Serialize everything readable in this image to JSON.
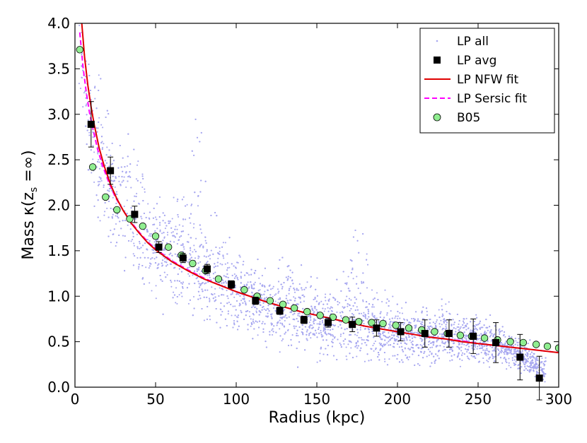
{
  "chart_data": {
    "type": "scatter",
    "xlabel": "Radius (kpc)",
    "ylabel": "Mass κ(z",
    "ylabel_sub": "s",
    "ylabel_tail": " =∞)",
    "xlim": [
      0,
      300
    ],
    "ylim": [
      0.0,
      4.0
    ],
    "xticks": [
      "0",
      "50",
      "100",
      "150",
      "200",
      "250",
      "300"
    ],
    "yticks": [
      "0.0",
      "0.5",
      "1.0",
      "1.5",
      "2.0",
      "2.5",
      "3.0",
      "3.5",
      "4.0"
    ],
    "grid": false,
    "legend_position": "top-right",
    "legend": {
      "lp_all": "LP all",
      "lp_avg": "LP avg",
      "nfw": "LP NFW fit",
      "sersic": "LP Sersic fit",
      "b05": "B05"
    },
    "colors": {
      "lp_all": "#a8a8f0",
      "lp_avg": "#000000",
      "nfw": "#e00000",
      "sersic": "#ff00ff",
      "b05": "#90ee90"
    },
    "lp_avg": {
      "x": [
        10,
        22,
        37,
        52,
        67,
        82,
        97,
        112,
        127,
        142,
        157,
        172,
        187,
        202,
        217,
        232,
        247,
        261,
        276,
        288
      ],
      "y": [
        2.89,
        2.38,
        1.9,
        1.54,
        1.42,
        1.3,
        1.13,
        0.95,
        0.84,
        0.74,
        0.71,
        0.69,
        0.65,
        0.61,
        0.59,
        0.59,
        0.56,
        0.49,
        0.33,
        0.1
      ],
      "err": [
        0.25,
        0.15,
        0.09,
        0.06,
        0.05,
        0.05,
        0.04,
        0.04,
        0.04,
        0.04,
        0.05,
        0.08,
        0.09,
        0.1,
        0.15,
        0.15,
        0.19,
        0.22,
        0.25,
        0.24
      ]
    },
    "b05": {
      "x": [
        3,
        11,
        19,
        26,
        34,
        42,
        50,
        58,
        66,
        73,
        81,
        89,
        97,
        105,
        113,
        121,
        129,
        136,
        144,
        152,
        160,
        168,
        176,
        184,
        191,
        199,
        207,
        215,
        223,
        231,
        239,
        246,
        254,
        262,
        270,
        278,
        286,
        293,
        300
      ],
      "y": [
        3.71,
        2.42,
        2.09,
        1.95,
        1.85,
        1.77,
        1.66,
        1.54,
        1.45,
        1.36,
        1.28,
        1.19,
        1.12,
        1.07,
        1.0,
        0.95,
        0.91,
        0.87,
        0.83,
        0.79,
        0.77,
        0.74,
        0.72,
        0.71,
        0.7,
        0.68,
        0.65,
        0.63,
        0.61,
        0.59,
        0.57,
        0.56,
        0.54,
        0.52,
        0.5,
        0.49,
        0.47,
        0.45,
        0.43
      ]
    },
    "nfw_fit": {
      "x": [
        4,
        6,
        8,
        10,
        12,
        15,
        18,
        22,
        26,
        30,
        35,
        40,
        45,
        50,
        60,
        70,
        80,
        90,
        100,
        110,
        120,
        130,
        140,
        150,
        160,
        170,
        180,
        190,
        200,
        210,
        220,
        230,
        240,
        250,
        260,
        270,
        280,
        290,
        300
      ],
      "y": [
        4.05,
        3.62,
        3.32,
        3.08,
        2.88,
        2.63,
        2.44,
        2.23,
        2.07,
        1.94,
        1.8,
        1.69,
        1.59,
        1.51,
        1.38,
        1.28,
        1.19,
        1.12,
        1.05,
        0.99,
        0.93,
        0.88,
        0.83,
        0.79,
        0.75,
        0.71,
        0.67,
        0.64,
        0.61,
        0.58,
        0.55,
        0.53,
        0.5,
        0.48,
        0.46,
        0.44,
        0.42,
        0.4,
        0.38
      ]
    },
    "sersic_fit": {
      "x": [
        3,
        5,
        7,
        9,
        11,
        14,
        17,
        21,
        25,
        30,
        35,
        40,
        45,
        50,
        60,
        70,
        80,
        90,
        100,
        110,
        120,
        130,
        140,
        150,
        160,
        170,
        180,
        190,
        200,
        210,
        220,
        230,
        240,
        250,
        260,
        270,
        280,
        290,
        300
      ],
      "y": [
        3.9,
        3.52,
        3.24,
        3.02,
        2.85,
        2.62,
        2.44,
        2.25,
        2.09,
        1.94,
        1.81,
        1.7,
        1.6,
        1.52,
        1.39,
        1.29,
        1.2,
        1.12,
        1.05,
        0.99,
        0.93,
        0.88,
        0.83,
        0.79,
        0.75,
        0.71,
        0.67,
        0.64,
        0.61,
        0.58,
        0.55,
        0.53,
        0.51,
        0.48,
        0.46,
        0.44,
        0.42,
        0.4,
        0.38
      ]
    },
    "lp_all": {
      "rmin": 2,
      "rmax": 292,
      "base_curve": {
        "x": [
          3,
          10,
          20,
          30,
          40,
          50,
          60,
          70,
          80,
          90,
          100,
          110,
          120,
          130,
          140,
          150,
          160,
          170,
          180,
          190,
          200,
          210,
          220,
          230,
          240,
          250,
          260,
          270,
          280,
          290
        ],
        "y": [
          3.7,
          2.85,
          2.25,
          1.95,
          1.75,
          1.55,
          1.42,
          1.35,
          1.22,
          1.12,
          1.03,
          0.95,
          0.88,
          0.82,
          0.77,
          0.72,
          0.7,
          0.7,
          0.66,
          0.62,
          0.6,
          0.57,
          0.55,
          0.55,
          0.54,
          0.52,
          0.48,
          0.42,
          0.32,
          0.18
        ]
      },
      "spread_curve": {
        "x": [
          3,
          10,
          20,
          30,
          40,
          50,
          60,
          70,
          80,
          90,
          100,
          110,
          120,
          130,
          140,
          150,
          160,
          170,
          180,
          190,
          200,
          210,
          220,
          230,
          240,
          250,
          260,
          270,
          280,
          290
        ],
        "y": [
          0.3,
          0.6,
          0.65,
          0.6,
          0.55,
          0.5,
          0.45,
          0.42,
          0.4,
          0.38,
          0.36,
          0.34,
          0.33,
          0.32,
          0.32,
          0.32,
          0.31,
          0.31,
          0.3,
          0.28,
          0.27,
          0.25,
          0.24,
          0.23,
          0.22,
          0.2,
          0.2,
          0.18,
          0.15,
          0.12
        ]
      },
      "bumps": [
        {
          "x": 75,
          "w": 12,
          "h": 1.45
        },
        {
          "x": 30,
          "w": 14,
          "h": 0.9
        },
        {
          "x": 135,
          "w": 12,
          "h": 0.45
        },
        {
          "x": 175,
          "w": 9,
          "h": 0.95
        },
        {
          "x": 228,
          "w": 8,
          "h": 0.35
        }
      ]
    }
  }
}
